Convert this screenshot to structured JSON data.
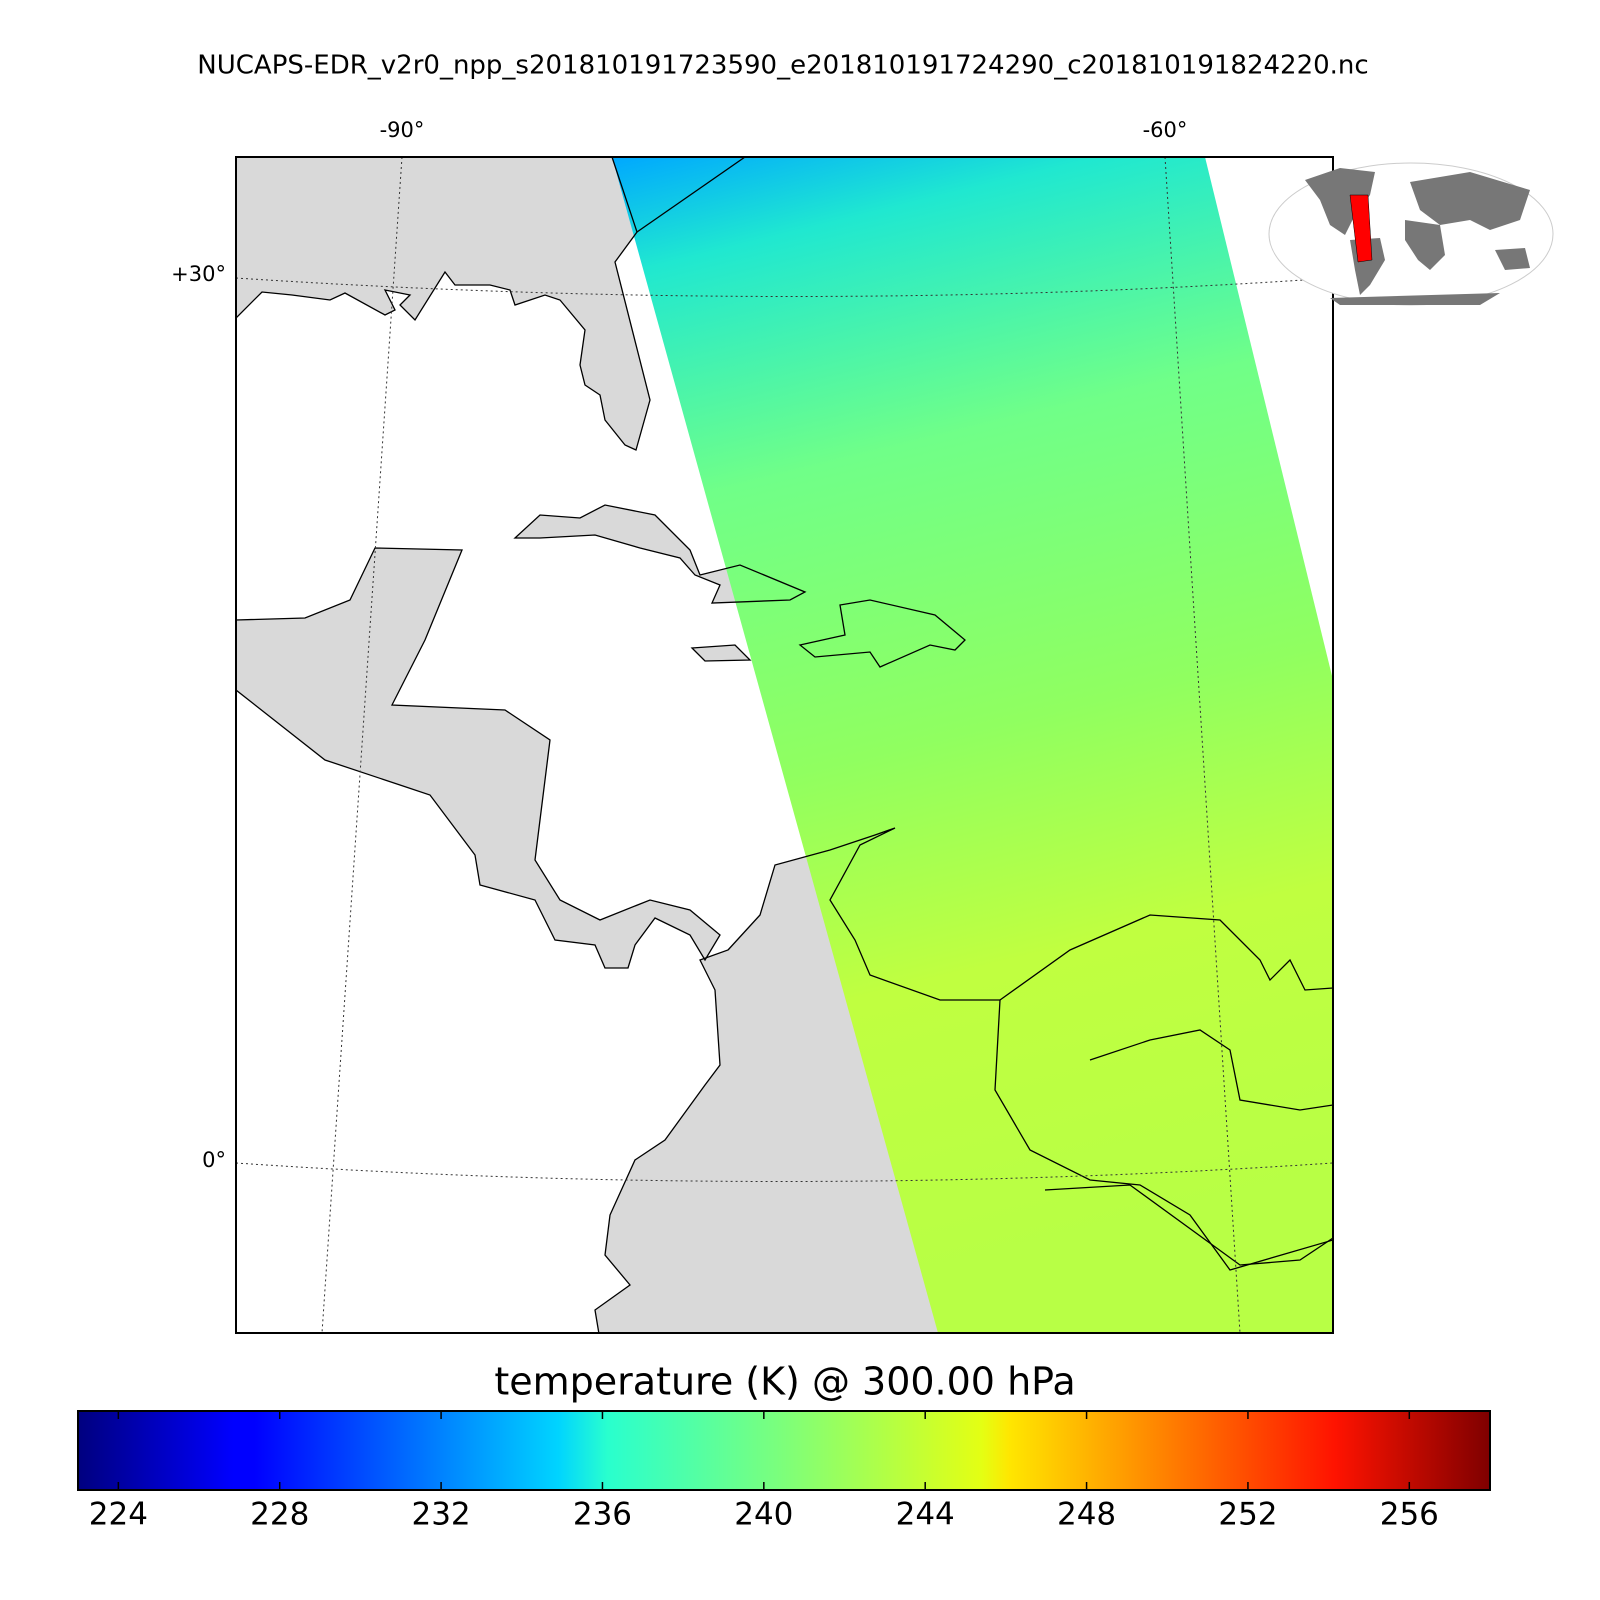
{
  "header": {
    "title": "NUCAPS-EDR_v2r0_npp_s201810191723590_e201810191724290_c201810191824220.nc"
  },
  "map": {
    "lon_labels": [
      "-90°",
      "-60°"
    ],
    "lat_labels": [
      "+30°",
      "0°"
    ]
  },
  "colorbar": {
    "label": "temperature (K) @ 300.00 hPa",
    "lim": [
      223,
      258
    ],
    "ticks": [
      224,
      228,
      232,
      236,
      240,
      244,
      248,
      252,
      256
    ]
  }
}
